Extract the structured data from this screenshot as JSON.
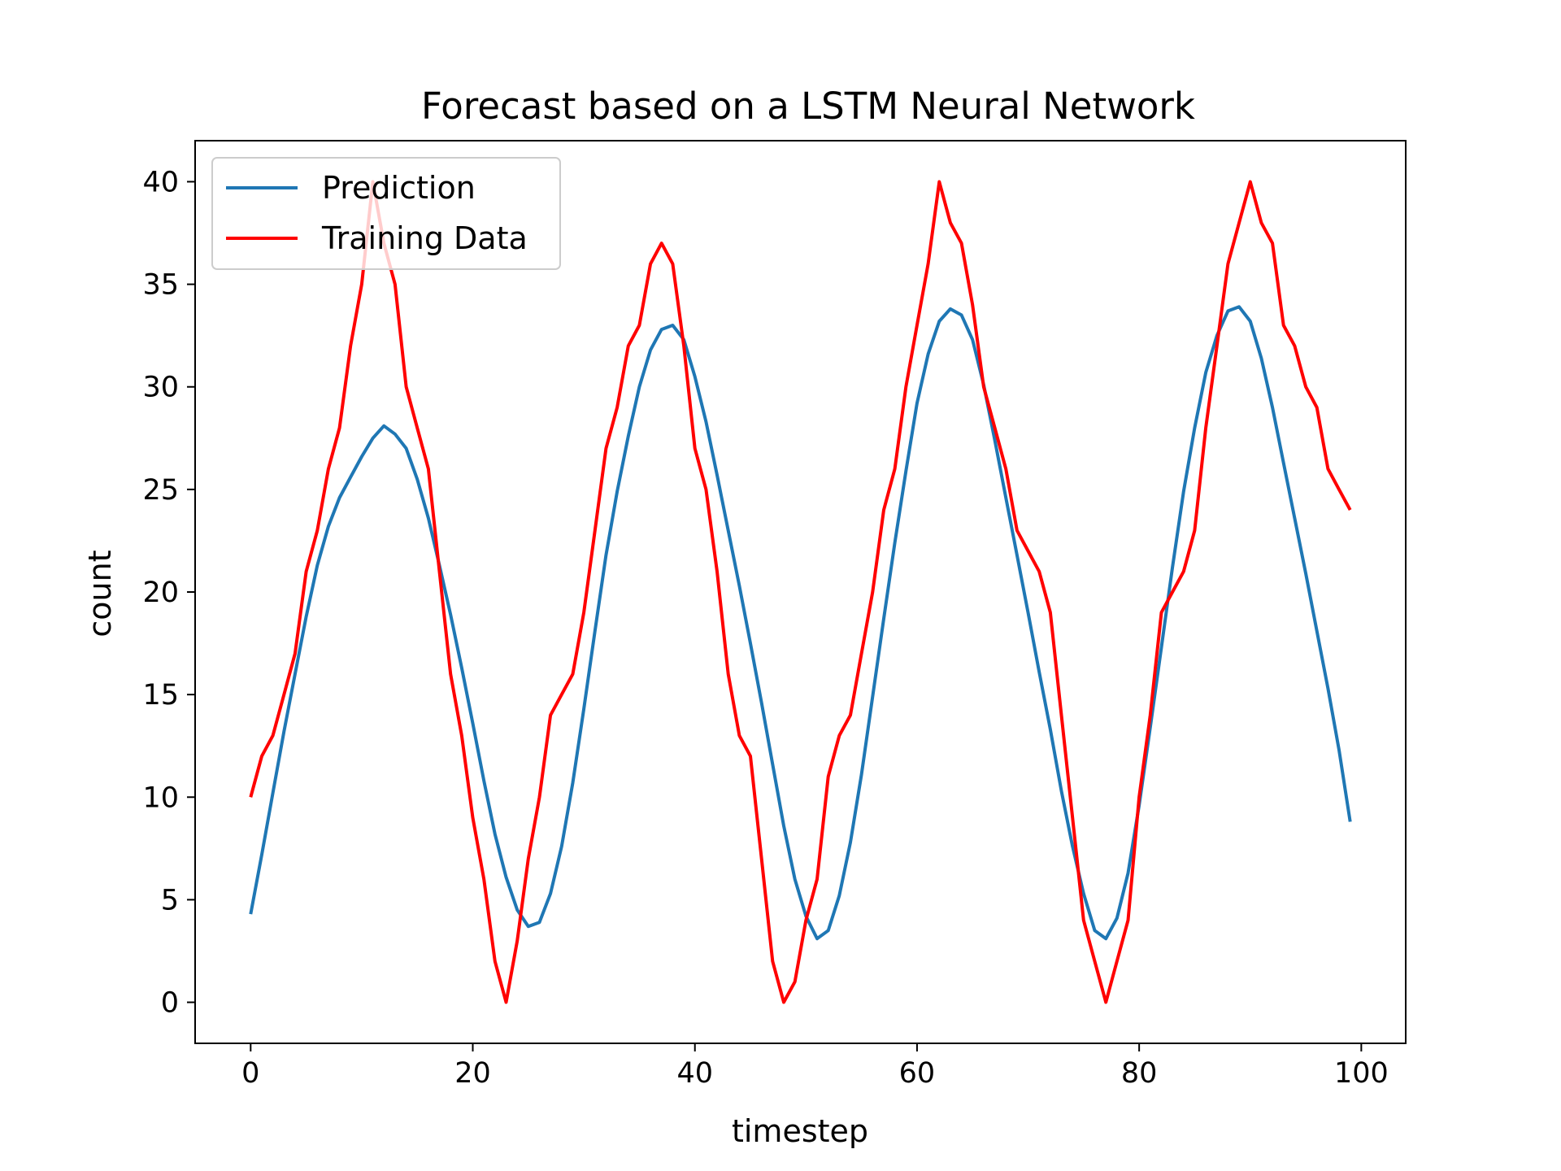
{
  "chart_data": {
    "type": "line",
    "title": "Forecast based on a LSTM Neural Network",
    "xlabel": "timestep",
    "ylabel": "count",
    "xlim": [
      -5,
      104
    ],
    "ylim": [
      -2,
      42
    ],
    "xticks": [
      0,
      20,
      40,
      60,
      80,
      100
    ],
    "yticks": [
      0,
      5,
      10,
      15,
      20,
      25,
      30,
      35,
      40
    ],
    "grid": false,
    "legend_position": "top-left",
    "series": [
      {
        "name": "Prediction",
        "color": "#1f77b4",
        "x": [
          0,
          1,
          2,
          3,
          4,
          5,
          6,
          7,
          8,
          9,
          10,
          11,
          12,
          13,
          14,
          15,
          16,
          17,
          18,
          19,
          20,
          21,
          22,
          23,
          24,
          25,
          26,
          27,
          28,
          29,
          30,
          31,
          32,
          33,
          34,
          35,
          36,
          37,
          38,
          39,
          40,
          41,
          42,
          43,
          44,
          45,
          46,
          47,
          48,
          49,
          50,
          51,
          52,
          53,
          54,
          55,
          56,
          57,
          58,
          59,
          60,
          61,
          62,
          63,
          64,
          65,
          66,
          67,
          68,
          69,
          70,
          71,
          72,
          73,
          74,
          75,
          76,
          77,
          78,
          79,
          80,
          81,
          82,
          83,
          84,
          85,
          86,
          87,
          88,
          89,
          90,
          91,
          92,
          93,
          94,
          95,
          96,
          97,
          98,
          99
        ],
        "y": [
          4.3,
          7.2,
          10.2,
          13.2,
          16.0,
          18.8,
          21.3,
          23.2,
          24.6,
          25.6,
          26.6,
          27.5,
          28.1,
          27.7,
          27.0,
          25.5,
          23.6,
          21.3,
          18.9,
          16.3,
          13.6,
          10.8,
          8.2,
          6.1,
          4.5,
          3.7,
          3.9,
          5.3,
          7.6,
          10.7,
          14.3,
          18.1,
          21.8,
          24.9,
          27.6,
          30.0,
          31.8,
          32.8,
          33.0,
          32.3,
          30.5,
          28.3,
          25.7,
          23.0,
          20.3,
          17.5,
          14.6,
          11.6,
          8.6,
          6.0,
          4.2,
          3.1,
          3.5,
          5.2,
          7.8,
          11.1,
          14.9,
          18.7,
          22.4,
          25.9,
          29.2,
          31.6,
          33.2,
          33.8,
          33.5,
          32.3,
          30.1,
          27.4,
          24.6,
          21.8,
          19.0,
          16.1,
          13.3,
          10.3,
          7.6,
          5.3,
          3.5,
          3.1,
          4.1,
          6.3,
          9.6,
          13.4,
          17.3,
          21.2,
          24.9,
          28.0,
          30.7,
          32.5,
          33.7,
          33.9,
          33.2,
          31.4,
          29.0,
          26.3,
          23.6,
          20.9,
          18.1,
          15.3,
          12.3,
          8.8
        ]
      },
      {
        "name": "Training Data",
        "color": "#ff0000",
        "x": [
          0,
          1,
          2,
          3,
          4,
          5,
          6,
          7,
          8,
          9,
          10,
          11,
          12,
          13,
          14,
          15,
          16,
          17,
          18,
          19,
          20,
          21,
          22,
          23,
          24,
          25,
          26,
          27,
          28,
          29,
          30,
          31,
          32,
          33,
          34,
          35,
          36,
          37,
          38,
          39,
          40,
          41,
          42,
          43,
          44,
          45,
          46,
          47,
          48,
          49,
          50,
          51,
          52,
          53,
          54,
          55,
          56,
          57,
          58,
          59,
          60,
          61,
          62,
          63,
          64,
          65,
          66,
          67,
          68,
          69,
          70,
          71,
          72,
          73,
          74,
          75,
          76,
          77,
          78,
          79,
          80,
          81,
          82,
          83,
          84,
          85,
          86,
          87,
          88,
          89,
          90,
          91,
          92,
          93,
          94,
          95,
          96,
          97,
          98,
          99
        ],
        "y": [
          10,
          12,
          13,
          15,
          17,
          21,
          23,
          26,
          28,
          32,
          35,
          40,
          37,
          35,
          30,
          28,
          26,
          21,
          16,
          13,
          9,
          6,
          2,
          0,
          3,
          7,
          10,
          14,
          15,
          16,
          19,
          23,
          27,
          29,
          32,
          33,
          36,
          37,
          36,
          32,
          27,
          25,
          21,
          16,
          13,
          12,
          7,
          2,
          0,
          1,
          4,
          6,
          11,
          13,
          14,
          17,
          20,
          24,
          26,
          30,
          33,
          36,
          40,
          38,
          37,
          34,
          30,
          28,
          26,
          23,
          22,
          21,
          19,
          14,
          9,
          4,
          2,
          0,
          2,
          4,
          10,
          14,
          19,
          20,
          21,
          23,
          28,
          32,
          36,
          38,
          40,
          38,
          37,
          33,
          32,
          30,
          29,
          26,
          25,
          24
        ]
      }
    ]
  }
}
